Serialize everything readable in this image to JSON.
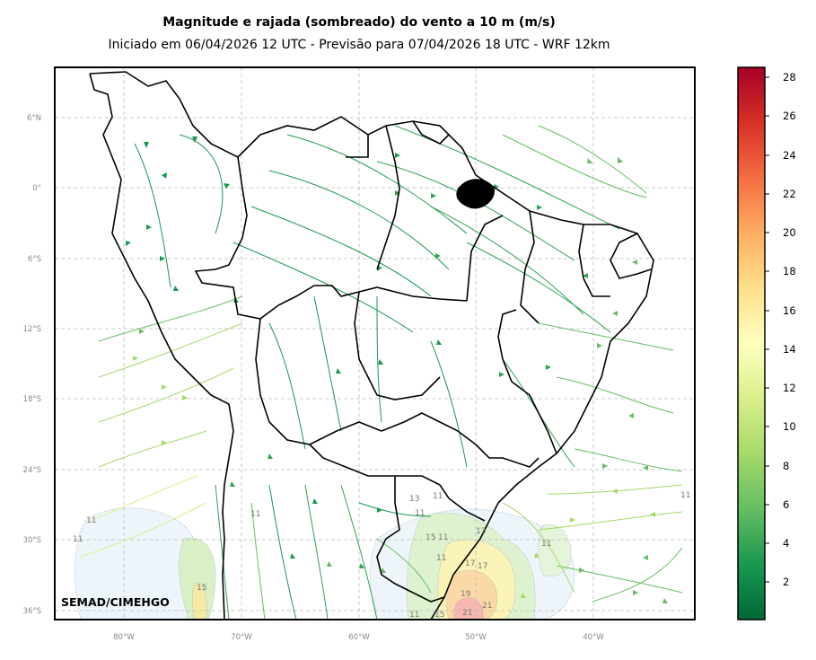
{
  "title": "Magnitude e rajada (sombreado) do vento a 10 m (m/s)",
  "subtitle": "Iniciado em 06/04/2026 12 UTC - Previsão para 07/04/2026 18 UTC - WRF 12km",
  "credit": "SEMAD/CIMEHGO",
  "map": {
    "lat_labels": [
      "6°N",
      "0°",
      "6°S",
      "12°S",
      "18°S",
      "24°S",
      "30°S",
      "36°S"
    ],
    "lon_labels": [
      "80°W",
      "70°W",
      "60°W",
      "50°W",
      "40°W"
    ],
    "contour_labels": [
      "11",
      "11",
      "11",
      "11",
      "13",
      "11",
      "11",
      "15",
      "11",
      "11",
      "13",
      "17",
      "17",
      "11",
      "15",
      "19",
      "21",
      "21",
      "15",
      "11"
    ]
  },
  "colorbar": {
    "ticks": [
      "2",
      "4",
      "6",
      "8",
      "10",
      "12",
      "14",
      "16",
      "18",
      "20",
      "22",
      "24",
      "26",
      "28"
    ],
    "colors": [
      "#006837",
      "#1a9850",
      "#66bd63",
      "#a6d96a",
      "#d9ef8b",
      "#ffffbf",
      "#fee08b",
      "#fdae61",
      "#f46d43",
      "#d73027",
      "#a50026"
    ]
  }
}
